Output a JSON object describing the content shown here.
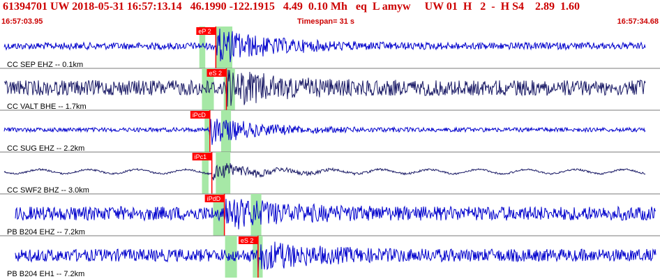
{
  "header": {
    "title": "61394701 UW 2018-05-31 16:57:13.14   46.1990 -122.1915   4.49  0.10 Mh   eq  L amyw     UW 01  H   2  -  H S4    2.89  1.60",
    "start_time": "16:57:03.95",
    "timespan": "Timespan=  31 s",
    "end_time": "16:57:34.68"
  },
  "colors": {
    "text_red": "#cc0000",
    "trace_blue": "#0000cc",
    "trace_navy": "#1a1a66",
    "pick_red": "#ff0000",
    "window_green": "#a6e8a6",
    "separator": "#7a7a7a"
  },
  "traces": [
    {
      "label": "CC SEP EHZ -- 0.1km",
      "color": "trace_blue",
      "amp": 5,
      "burst": 30,
      "picks": [
        {
          "label": "eP 2",
          "t": 0.327
        }
      ],
      "windows": [
        [
          0.302,
          0.311
        ],
        [
          0.327,
          0.352
        ]
      ]
    },
    {
      "label": "CC VALT BHE -- 1.7km",
      "color": "trace_navy",
      "amp": 11,
      "burst": 22,
      "picks": [
        {
          "label": "eS 2",
          "t": 0.343
        }
      ],
      "windows": [
        [
          0.306,
          0.324
        ],
        [
          0.339,
          0.356
        ]
      ]
    },
    {
      "label": "CC SUG EHZ -- 2.2km",
      "color": "trace_blue",
      "amp": 3,
      "burst": 22,
      "picks": [
        {
          "label": "iPcD",
          "t": 0.318
        }
      ],
      "windows": [
        [
          0.31,
          0.317
        ],
        [
          0.335,
          0.35
        ]
      ]
    },
    {
      "label": "CC SWF2 BHZ -- 3.0km",
      "color": "trace_navy",
      "amp": 2,
      "burst": 24,
      "picks": [
        {
          "label": "iPc1",
          "t": 0.321
        }
      ],
      "windows": [
        [
          0.306,
          0.316
        ],
        [
          0.327,
          0.349
        ]
      ]
    },
    {
      "label": "PB B204 EHZ -- 7.2km",
      "color": "trace_blue",
      "amp": 10,
      "burst": 24,
      "picks": [
        {
          "label": "iPdD",
          "t": 0.34
        }
      ],
      "windows": [
        [
          0.323,
          0.34
        ],
        [
          0.38,
          0.396
        ]
      ]
    },
    {
      "label": "PB B204 EH1 -- 7.2km",
      "color": "trace_blue",
      "amp": 9,
      "burst": 20,
      "picks": [
        {
          "label": "eS 2",
          "t": 0.391
        }
      ],
      "windows": [
        [
          0.341,
          0.359
        ],
        [
          0.383,
          0.398
        ]
      ]
    }
  ]
}
